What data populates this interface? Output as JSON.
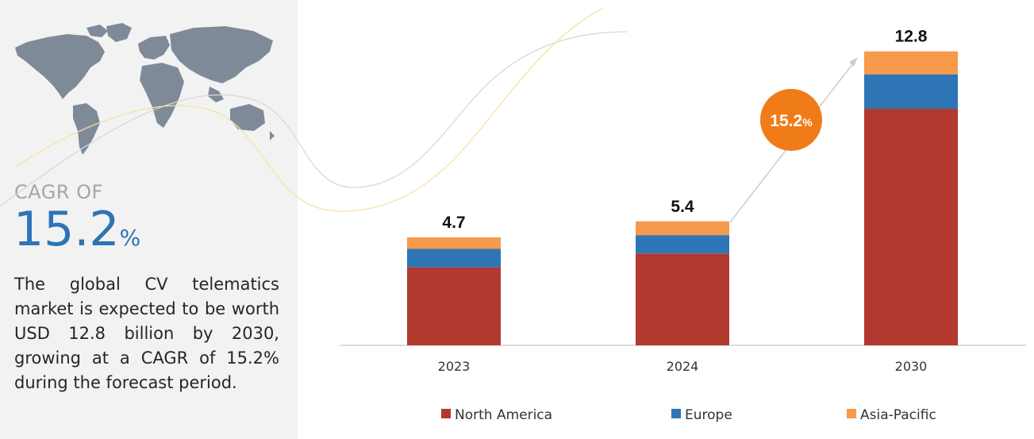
{
  "headline": {
    "cagr_label": "CAGR OF",
    "cagr_number": "15.2",
    "cagr_unit": "%"
  },
  "description": "The global CV telematics market is expected to be worth USD 12.8 billion by 2030, growing at a CAGR of 15.2% during the forecast period.",
  "growth_badge": {
    "number": "15.2",
    "unit": "%"
  },
  "colors": {
    "north_america": "#b23930",
    "europe": "#2e75b6",
    "asia_pacific": "#f79a4b",
    "badge": "#f07c19",
    "cagr_text": "#2e74b5",
    "map": "#7f8a99"
  },
  "chart_data": {
    "type": "bar",
    "stacked": true,
    "categories": [
      "2023",
      "2024",
      "2030"
    ],
    "series": [
      {
        "name": "North America",
        "values": [
          3.4,
          4.0,
          10.3
        ]
      },
      {
        "name": "Europe",
        "values": [
          0.8,
          0.8,
          1.5
        ]
      },
      {
        "name": "Asia-Pacific",
        "values": [
          0.5,
          0.6,
          1.0
        ]
      }
    ],
    "totals": [
      "4.7",
      "5.4",
      "12.8"
    ],
    "ylim": [
      0,
      14
    ],
    "legend_position": "bottom",
    "grid": false
  }
}
